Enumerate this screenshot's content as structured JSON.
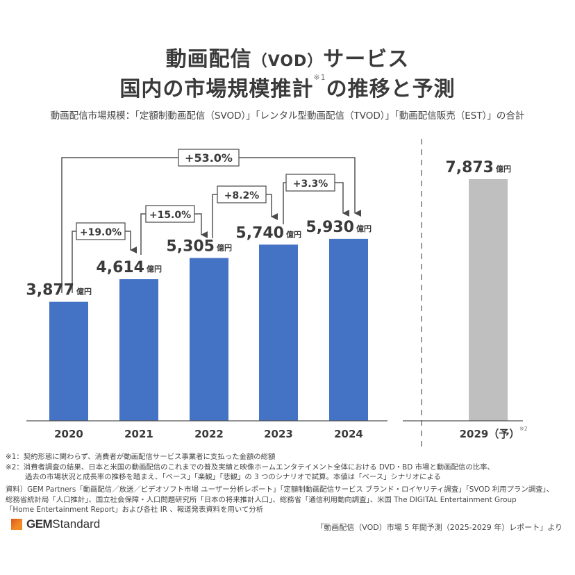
{
  "title": {
    "line1_a": "動画配信",
    "line1_vod": "（VOD）",
    "line1_b": "サービス",
    "line2_a": "国内の市場規模推計",
    "line2_note": "※1",
    "line2_b": "の推移と予測"
  },
  "subtitle": "動画配信市場規模：「定額制動画配信（SVOD）」「レンタル型動画配信（TVOD）」「動画配信販売（EST）」の合計",
  "colors": {
    "actual_bar": "#4472c4",
    "forecast_bar": "#bfbfbf",
    "connector": "#555555",
    "text": "#333333"
  },
  "chart_data": {
    "type": "bar",
    "title": "動画配信（VOD）サービス 国内の市場規模推計の推移と予測",
    "subtitle": "動画配信市場規模：「定額制動画配信（SVOD）」「レンタル型動画配信（TVOD）」「動画配信販売（EST）」の合計",
    "categories": [
      "2020",
      "2021",
      "2022",
      "2023",
      "2024",
      "2029（予）"
    ],
    "category_note": [
      "",
      "",
      "",
      "",
      "",
      "※2"
    ],
    "values": [
      3877,
      4614,
      5305,
      5740,
      5930,
      7873
    ],
    "value_labels": [
      "3,877",
      "4,614",
      "5,305",
      "5,740",
      "5,930",
      "7,873"
    ],
    "unit": "億円",
    "forecast": [
      false,
      false,
      false,
      false,
      false,
      true
    ],
    "growth": [
      {
        "from": "2020",
        "to": "2021",
        "label": "+19.0%"
      },
      {
        "from": "2021",
        "to": "2022",
        "label": "+15.0%"
      },
      {
        "from": "2022",
        "to": "2023",
        "label": "+8.2%"
      },
      {
        "from": "2023",
        "to": "2024",
        "label": "+3.3%"
      },
      {
        "from": "2020",
        "to": "2024",
        "label": "+53.0%"
      }
    ],
    "xlabel": "",
    "ylabel": "",
    "ylim": [
      0,
      8000
    ],
    "grid": false,
    "legend": "none"
  },
  "notes": {
    "note1": "※1：契約形態に関わらず、消費者が動画配信サービス事業者に支払った金額の総額",
    "note2_line1": "※2：消費者調査の結果、日本と米国の動画配信のこれまでの普及実績と映像ホームエンタテイメント全体における DVD・BD 市場と動画配信の比率、",
    "note2_line2": "過去の市場状況と成長率の推移を踏まえ、「ベース」「楽観」「悲観」の 3 つのシナリオで試算。本値は「ベース」シナリオによる",
    "source_line1": "資料）GEM Partners「動画配信／放送／ビデオソフト市場 ユーザー分析レポート」「定額制動画配信サービス ブランド・ロイヤリティ調査」「SVOD 利用プラン調査」、",
    "source_line2": "総務省統計局「人口推計」、国立社会保障・人口問題研究所「日本の将来推計人口」、総務省「通信利用動向調査」、米国 The DIGITAL Entertainment Group",
    "source_line3": "「Home Entertainment Report」および各社 IR 、報道発表資料を用いて分析"
  },
  "footer": {
    "logo_bold": "GEM",
    "logo_regular": "Standard",
    "credit": "「動画配信（VOD）市場 5 年間予測（2025-2029 年）レポート」より"
  }
}
